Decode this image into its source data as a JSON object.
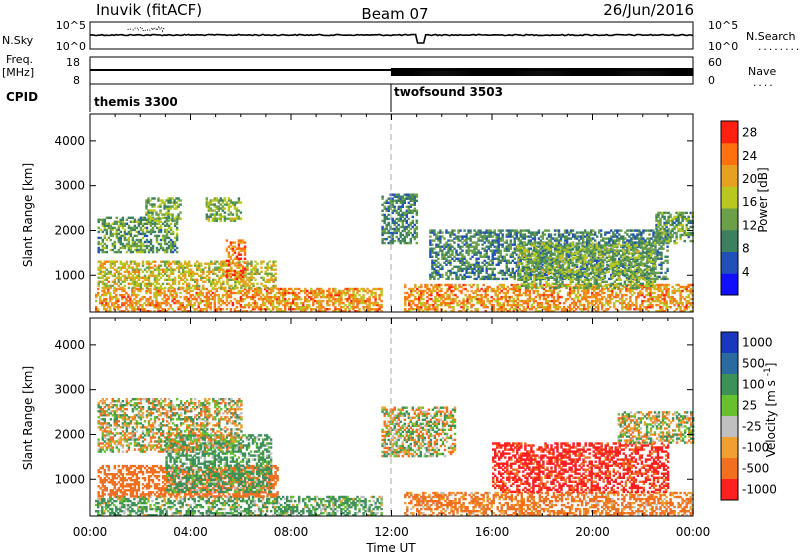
{
  "header": {
    "station": "Inuvik (fitACF)",
    "beam": "Beam 07",
    "date": "26/Jun/2016"
  },
  "nsky_panel": {
    "left_label": "N.Sky",
    "right_label": "N.Search",
    "left_ticks": [
      "10^5",
      "10^0"
    ],
    "right_ticks": [
      "10^5",
      "10^0"
    ],
    "legend_dots": "........"
  },
  "freq_panel": {
    "left_label_1": "Freq.",
    "left_label_2": "[MHz]",
    "left_ticks": [
      "18",
      "8"
    ],
    "right_label": "Nave",
    "right_ticks": [
      "60",
      "0"
    ],
    "legend_dots": "...."
  },
  "cpid": {
    "label": "CPID",
    "entries": [
      "themis 3300",
      "twofsound 3503"
    ]
  },
  "time_axis": {
    "label": "Time UT",
    "ticks": [
      "00:00",
      "04:00",
      "08:00",
      "12:00",
      "16:00",
      "20:00",
      "00:00"
    ]
  },
  "chart_data": [
    {
      "type": "heatmap",
      "title": "",
      "xlabel": "Time UT",
      "ylabel": "Slant Range [km]",
      "x_ticks": [
        "00:00",
        "04:00",
        "08:00",
        "12:00",
        "16:00",
        "20:00",
        "00:00"
      ],
      "xlim": [
        0,
        24
      ],
      "y_ticks": [
        1000,
        2000,
        3000,
        4000
      ],
      "ylim": [
        180,
        4600
      ],
      "colorbar": {
        "label": "Power [dB]",
        "ticks": [
          4,
          8,
          12,
          16,
          20,
          24,
          28
        ],
        "range": [
          0,
          30
        ],
        "colors": [
          "#1010ff",
          "#2050b8",
          "#3c8060",
          "#6aa048",
          "#b8c820",
          "#e8a020",
          "#ff7010",
          "#ff2010"
        ]
      },
      "echo_regions": [
        {
          "t_start": 0.2,
          "t_end": 11.6,
          "range_min": 180,
          "range_max": 700,
          "level_db": 22
        },
        {
          "t_start": 0.3,
          "t_end": 3.5,
          "range_min": 1500,
          "range_max": 2300,
          "level_db": 12
        },
        {
          "t_start": 2.2,
          "t_end": 3.6,
          "range_min": 2200,
          "range_max": 2700,
          "level_db": 14
        },
        {
          "t_start": 4.6,
          "t_end": 6.0,
          "range_min": 2200,
          "range_max": 2700,
          "level_db": 14
        },
        {
          "t_start": 0.3,
          "t_end": 7.4,
          "range_min": 700,
          "range_max": 1300,
          "level_db": 18
        },
        {
          "t_start": 5.4,
          "t_end": 6.2,
          "range_min": 900,
          "range_max": 1800,
          "level_db": 24
        },
        {
          "t_start": 11.6,
          "t_end": 13.0,
          "range_min": 1700,
          "range_max": 2800,
          "level_db": 10
        },
        {
          "t_start": 12.5,
          "t_end": 24.0,
          "range_min": 180,
          "range_max": 800,
          "level_db": 22
        },
        {
          "t_start": 13.5,
          "t_end": 23.0,
          "range_min": 900,
          "range_max": 2000,
          "level_db": 10
        },
        {
          "t_start": 17.0,
          "t_end": 22.5,
          "range_min": 700,
          "range_max": 1700,
          "level_db": 14
        },
        {
          "t_start": 22.5,
          "t_end": 24.0,
          "range_min": 1700,
          "range_max": 2400,
          "level_db": 12
        }
      ]
    },
    {
      "type": "heatmap",
      "title": "",
      "xlabel": "Time UT",
      "ylabel": "Slant Range [km]",
      "x_ticks": [
        "00:00",
        "04:00",
        "08:00",
        "12:00",
        "16:00",
        "20:00",
        "00:00"
      ],
      "xlim": [
        0,
        24
      ],
      "y_ticks": [
        1000,
        2000,
        3000,
        4000
      ],
      "ylim": [
        180,
        4600
      ],
      "colorbar": {
        "label": "Velocity [m s^-1]",
        "ticks": [
          1000,
          500,
          100,
          25,
          -25,
          -100,
          -500,
          -1000
        ],
        "colors": [
          "#1838c0",
          "#2a6aa0",
          "#3c9058",
          "#66c030",
          "#c0c0c0",
          "#f0a030",
          "#f07020",
          "#ff2020"
        ]
      },
      "echo_regions": [
        {
          "t_start": 0.2,
          "t_end": 11.6,
          "range_min": 180,
          "range_max": 600,
          "velocity": 150
        },
        {
          "t_start": 0.3,
          "t_end": 7.5,
          "range_min": 600,
          "range_max": 1300,
          "velocity": -300
        },
        {
          "t_start": 3.0,
          "t_end": 7.2,
          "range_min": 700,
          "range_max": 2000,
          "velocity": 200
        },
        {
          "t_start": 0.3,
          "t_end": 6.0,
          "range_min": 1600,
          "range_max": 2800,
          "velocity": 0
        },
        {
          "t_start": 11.6,
          "t_end": 14.5,
          "range_min": 1500,
          "range_max": 2600,
          "velocity": 0
        },
        {
          "t_start": 12.5,
          "t_end": 24.0,
          "range_min": 180,
          "range_max": 700,
          "velocity": -200
        },
        {
          "t_start": 16.0,
          "t_end": 23.0,
          "range_min": 700,
          "range_max": 1800,
          "velocity": -600
        },
        {
          "t_start": 21.0,
          "t_end": 24.0,
          "range_min": 1800,
          "range_max": 2500,
          "velocity": 0
        }
      ]
    }
  ]
}
